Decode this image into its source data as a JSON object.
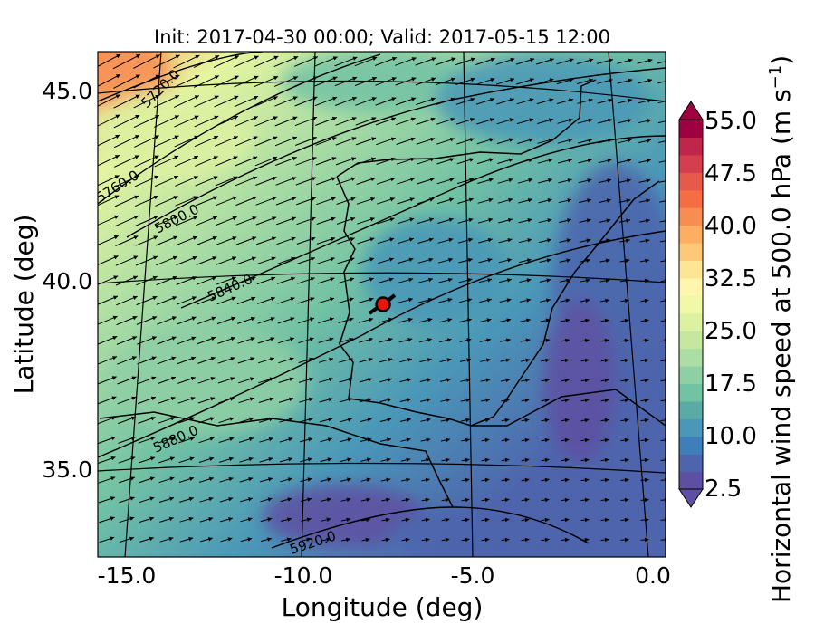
{
  "title": "Init: 2017-04-30 00:00; Valid: 2017-05-15 12:00",
  "xlabel": "Longitude (deg)",
  "ylabel": "Latitude (deg)",
  "x_ticks": [
    "-15.0",
    "-10.0",
    "-5.0",
    "0.0"
  ],
  "y_ticks": [
    "45.0",
    "40.0",
    "35.0"
  ],
  "colorbar": {
    "label_main": "Horizontal wind speed at 500.0 hPa (m s",
    "label_exp": "−1",
    "label_close": ")",
    "ticks": [
      "55.0",
      "47.5",
      "40.0",
      "32.5",
      "25.0",
      "17.5",
      "10.0",
      "2.5"
    ],
    "range": [
      2.5,
      55.0
    ],
    "extend": "both",
    "colors": [
      "#5e4fa2",
      "#4e65ad",
      "#3f7fb9",
      "#4a97b8",
      "#5aaba5",
      "#72c2a4",
      "#8fcfa4",
      "#abdda4",
      "#c4e8a0",
      "#dcf1a1",
      "#f0f9a8",
      "#fff5ae",
      "#fee593",
      "#fdc878",
      "#fdae61",
      "#f88d52",
      "#f46d43",
      "#e55a4a",
      "#d53e4f",
      "#c0254b",
      "#9e0142"
    ]
  },
  "contour_labels": [
    "5720.0",
    "5760.0",
    "5800.0",
    "5840.0",
    "5880.0",
    "5920.0"
  ],
  "marker": {
    "color": "#e8160c",
    "lon": -7.7,
    "lat": 39.3
  },
  "colors": {
    "land_outline": "#000000",
    "vector": "#000000"
  }
}
